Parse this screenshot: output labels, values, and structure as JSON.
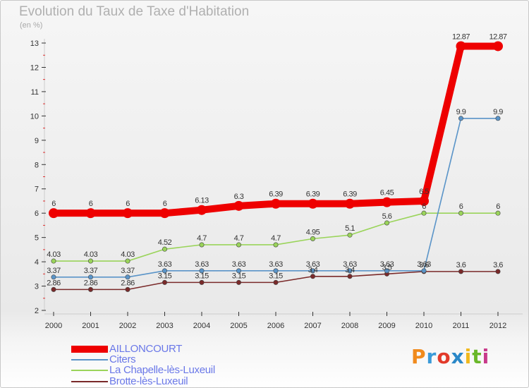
{
  "title": "Evolution du Taux de Taxe d'Habitation",
  "unit_label": "(en %)",
  "logo": {
    "text": "Proxiti",
    "colors": [
      "#f08a1c",
      "#3a9ad8",
      "#e23a2a",
      "#2a88c8",
      "#f0b81c",
      "#6ab82a",
      "#c83a8a"
    ]
  },
  "chart_data": {
    "type": "line",
    "title": "Evolution du Taux de Taxe d'Habitation",
    "ylabel": "(en %)",
    "xlabel": "",
    "x": [
      "2000",
      "2001",
      "2002",
      "2003",
      "2004",
      "2005",
      "2006",
      "2007",
      "2008",
      "2009",
      "2010",
      "2011",
      "2012"
    ],
    "ylim": [
      2,
      13
    ],
    "yticks": [
      2,
      3,
      4,
      5,
      6,
      7,
      8,
      9,
      10,
      11,
      12,
      13
    ],
    "grid": false,
    "legend_position": "bottom-left",
    "series": [
      {
        "name": "AILLONCOURT",
        "color": "#ee0000",
        "width": "thick",
        "values": [
          6,
          6,
          6,
          6,
          6.13,
          6.3,
          6.39,
          6.39,
          6.39,
          6.45,
          6.5,
          12.87,
          12.87
        ],
        "labels": [
          "6",
          "6",
          "6",
          "6",
          "6.13",
          "6.3",
          "6.39",
          "6.39",
          "6.39",
          "6.45",
          "6.5",
          "12.87",
          "12.87"
        ]
      },
      {
        "name": "Citers",
        "color": "#5a94c8",
        "width": "thin",
        "values": [
          3.37,
          3.37,
          3.37,
          3.63,
          3.63,
          3.63,
          3.63,
          3.63,
          3.63,
          3.63,
          3.63,
          9.9,
          9.9
        ],
        "labels": [
          "3.37",
          "3.37",
          "3.37",
          "3.63",
          "3.63",
          "3.63",
          "3.63",
          "3.63",
          "3.63",
          "3.63",
          "3.63",
          "9.9",
          "9.9"
        ]
      },
      {
        "name": "La Chapelle-lès-Luxeuil",
        "color": "#9ad45a",
        "width": "thin",
        "values": [
          4.03,
          4.03,
          4.03,
          4.52,
          4.7,
          4.7,
          4.7,
          4.95,
          5.1,
          5.6,
          6,
          6,
          6
        ],
        "labels": [
          "4.03",
          "4.03",
          "4.03",
          "4.52",
          "4.7",
          "4.7",
          "4.7",
          "4.95",
          "5.1",
          "5.6",
          "6",
          "6",
          "6"
        ]
      },
      {
        "name": "Brotte-lès-Luxeuil",
        "color": "#7a2a2a",
        "width": "thin",
        "values": [
          2.86,
          2.86,
          2.86,
          3.15,
          3.15,
          3.15,
          3.15,
          3.4,
          3.4,
          3.5,
          3.6,
          3.6,
          3.6
        ],
        "labels": [
          "2.86",
          "2.86",
          "2.86",
          "3.15",
          "3.15",
          "3.15",
          "3.15",
          "3.4",
          "3.4",
          "3.5",
          "3.6",
          "3.6",
          "3.6"
        ]
      }
    ]
  }
}
